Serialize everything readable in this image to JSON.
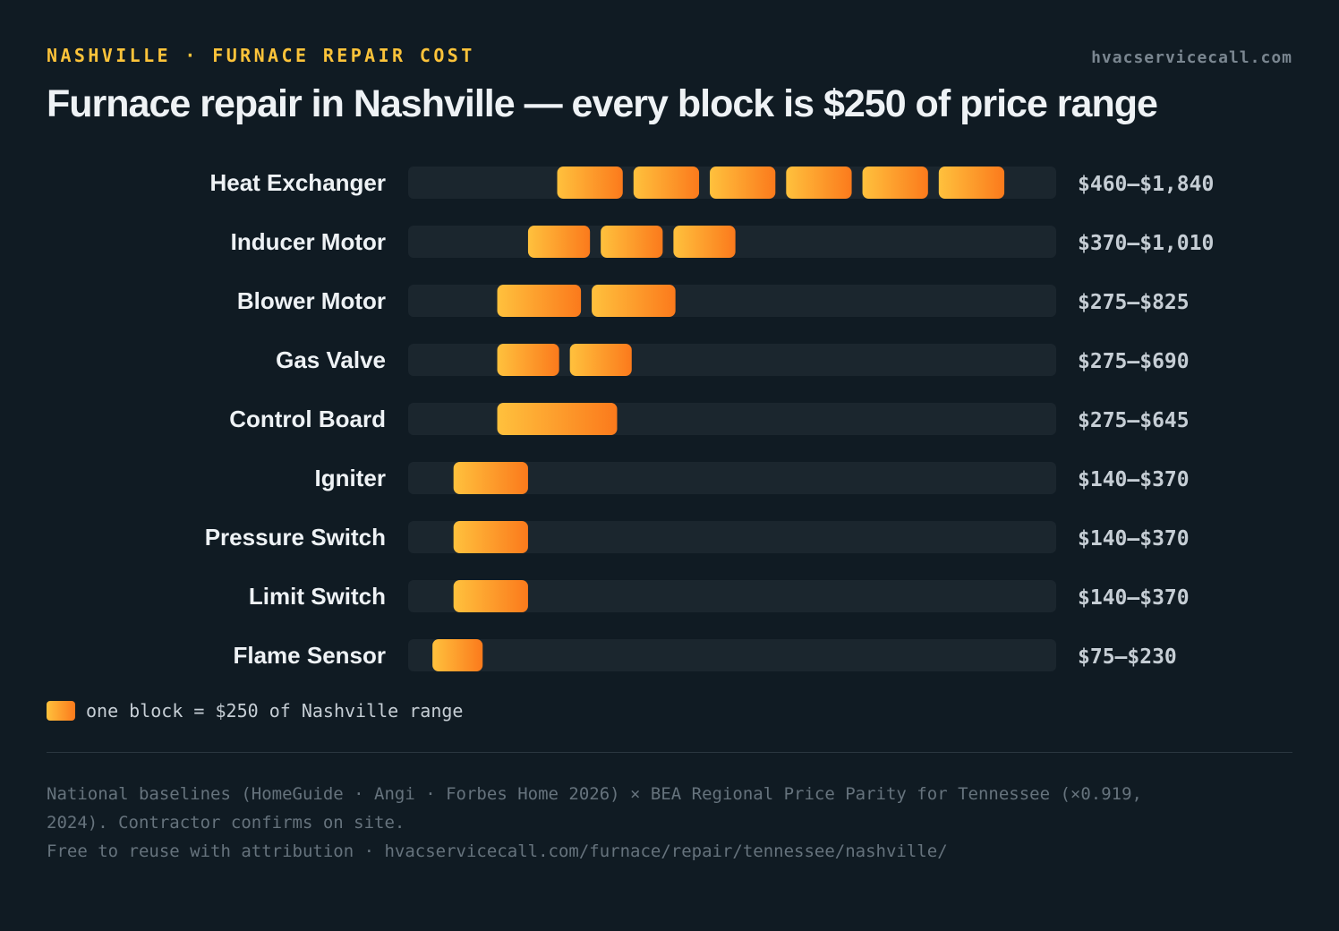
{
  "header": {
    "eyebrow": "NASHVILLE · FURNACE REPAIR COST",
    "site": "hvacservicecall.com",
    "title": "Furnace repair in Nashville — every block is $250 of price range"
  },
  "legend": {
    "label": "one block = $250 of Nashville range"
  },
  "footnote": {
    "line1": "National baselines (HomeGuide · Angi · Forbes Home 2026) × BEA Regional Price Parity for Tennessee (×0.919,",
    "line2": "2024). Contractor confirms on site.",
    "line3": "Free to reuse with attribution · hvacservicecall.com/furnace/repair/tennessee/nashville/"
  },
  "colors": {
    "background": "#101b23",
    "track": "#1b262e",
    "block_start": "#ffc13d",
    "block_end": "#fb7a1c",
    "label": "#eef2f5",
    "value_text": "#c6ced5",
    "accent": "#fcc33a"
  },
  "chart_data": {
    "type": "bar",
    "orientation": "horizontal",
    "unit_per_block": 250,
    "xlim": [
      0,
      2000
    ],
    "categories": [
      "Heat Exchanger",
      "Inducer Motor",
      "Blower Motor",
      "Gas Valve",
      "Control Board",
      "Igniter",
      "Pressure Switch",
      "Limit Switch",
      "Flame Sensor"
    ],
    "low": [
      460,
      370,
      275,
      275,
      275,
      140,
      140,
      140,
      75
    ],
    "high": [
      1840,
      1010,
      825,
      690,
      645,
      370,
      370,
      370,
      230
    ],
    "range_labels": [
      "$460–$1,840",
      "$370–$1,010",
      "$275–$825",
      "$275–$690",
      "$275–$645",
      "$140–$370",
      "$140–$370",
      "$140–$370",
      "$75–$230"
    ]
  }
}
